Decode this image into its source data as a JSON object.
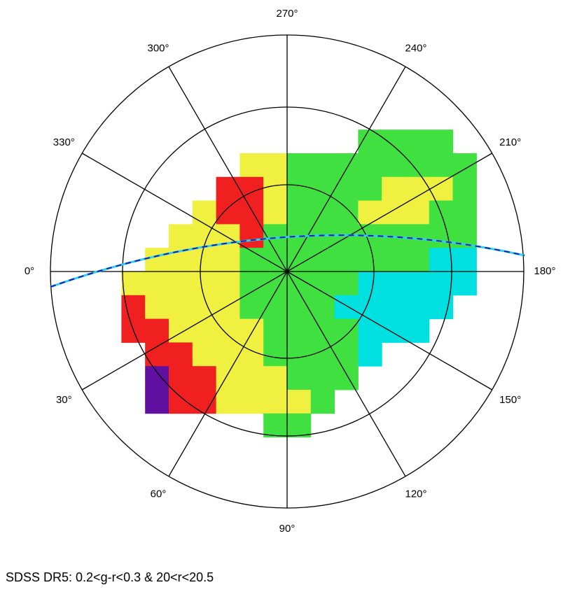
{
  "chart_data": {
    "type": "polar_heatmap",
    "title": "SDSS DR5: 0.2<g-r<0.3 & 20<r<20.5",
    "theta_ticks": [
      {
        "value": 0,
        "label": "0°"
      },
      {
        "value": 30,
        "label": "30°"
      },
      {
        "value": 60,
        "label": "60°"
      },
      {
        "value": 90,
        "label": "90°"
      },
      {
        "value": 120,
        "label": "120°"
      },
      {
        "value": 150,
        "label": "150°"
      },
      {
        "value": 180,
        "label": "180°"
      },
      {
        "value": 210,
        "label": "210°"
      },
      {
        "value": 240,
        "label": "240°"
      },
      {
        "value": 270,
        "label": "270°"
      },
      {
        "value": 300,
        "label": "300°"
      },
      {
        "value": 330,
        "label": "330°"
      }
    ],
    "xlim": [
      -1,
      1
    ],
    "ylim": [
      -1,
      1
    ],
    "x": [
      -0.65,
      -0.55,
      -0.45,
      -0.35,
      -0.25,
      -0.15,
      -0.05,
      0.05,
      0.15,
      0.25,
      0.35,
      0.45,
      0.55,
      0.65,
      0.75
    ],
    "y": [
      -0.55,
      -0.45,
      -0.35,
      -0.25,
      -0.15,
      -0.05,
      0.05,
      0.15,
      0.25,
      0.35,
      0.45,
      0.55,
      0.65
    ],
    "colors": [
      "#1010c0",
      "#00e0e0",
      "#40e040",
      "#f0f040",
      "#f02020",
      "#6010a0"
    ],
    "values": [
      [
        null,
        null,
        null,
        null,
        null,
        null,
        null,
        null,
        null,
        null,
        2,
        2,
        2,
        2,
        null
      ],
      [
        null,
        null,
        null,
        null,
        null,
        3,
        3,
        2,
        2,
        2,
        2,
        2,
        2,
        2,
        2
      ],
      [
        null,
        null,
        null,
        null,
        4,
        4,
        3,
        2,
        2,
        2,
        2,
        3,
        3,
        3,
        2
      ],
      [
        null,
        null,
        null,
        3,
        4,
        4,
        3,
        2,
        2,
        2,
        3,
        3,
        3,
        2,
        2
      ],
      [
        null,
        null,
        3,
        3,
        3,
        4,
        2,
        2,
        2,
        2,
        2,
        2,
        2,
        2,
        2
      ],
      [
        null,
        3,
        3,
        3,
        3,
        2,
        2,
        2,
        2,
        2,
        2,
        2,
        2,
        1,
        1
      ],
      [
        3,
        3,
        3,
        3,
        3,
        2,
        2,
        2,
        2,
        2,
        1,
        1,
        1,
        1,
        1
      ],
      [
        4,
        3,
        3,
        3,
        3,
        2,
        2,
        2,
        2,
        1,
        1,
        1,
        1,
        1,
        null
      ],
      [
        4,
        4,
        3,
        3,
        3,
        3,
        2,
        2,
        2,
        2,
        1,
        1,
        1,
        null,
        null
      ],
      [
        null,
        4,
        4,
        3,
        3,
        3,
        2,
        2,
        2,
        2,
        1,
        null,
        null,
        null,
        null
      ],
      [
        null,
        5,
        4,
        4,
        3,
        3,
        3,
        2,
        2,
        2,
        null,
        null,
        null,
        null,
        null
      ],
      [
        null,
        5,
        4,
        4,
        3,
        3,
        3,
        3,
        2,
        null,
        null,
        null,
        null,
        null,
        null
      ],
      [
        null,
        null,
        null,
        null,
        null,
        null,
        2,
        2,
        null,
        null,
        null,
        null,
        null,
        null,
        null
      ]
    ]
  }
}
